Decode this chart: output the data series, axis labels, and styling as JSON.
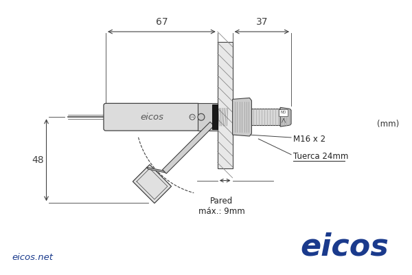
{
  "bg_color": "#ffffff",
  "line_color": "#404040",
  "dim_color": "#404040",
  "eicos_blue": "#1a3a8c",
  "dim_67": "67",
  "dim_37": "37",
  "dim_48": "48",
  "unit": "(mm)",
  "label_m16": "M16 x 2",
  "label_tuerca": "Tuerca 24mm",
  "label_pared": "Pared\nmáx.: 9mm",
  "brand": "eicos",
  "website": "eicos.net"
}
